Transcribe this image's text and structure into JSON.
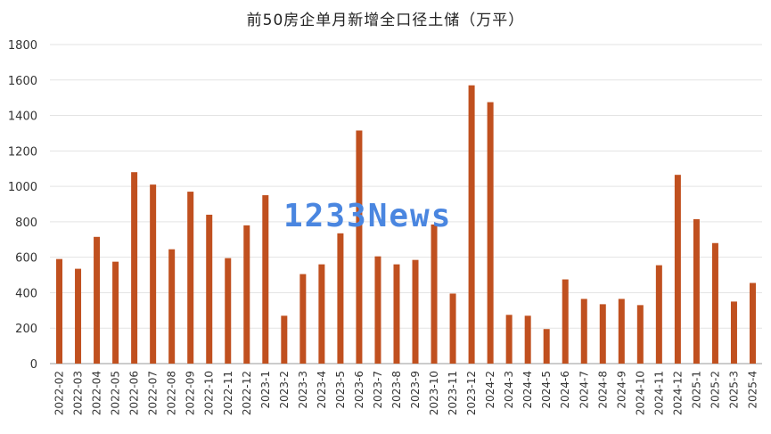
{
  "chart_data": {
    "type": "bar",
    "title": "前50房企单月新增全口径土储（万平）",
    "ylim": [
      0,
      1800
    ],
    "yticks": [
      0,
      200,
      400,
      600,
      800,
      1000,
      1200,
      1400,
      1600,
      1800
    ],
    "grid": true,
    "bar_color": "#c0501f",
    "categories": [
      "2022-02",
      "2022-03",
      "2022-04",
      "2022-05",
      "2022-06",
      "2022-07",
      "2022-08",
      "2022-09",
      "2022-10",
      "2022-11",
      "2022-12",
      "2023-1",
      "2023-2",
      "2023-3",
      "2023-4",
      "2023-5",
      "2023-6",
      "2023-7",
      "2023-8",
      "2023-9",
      "2023-10",
      "2023-11",
      "2023-12",
      "2024-2",
      "2024-3",
      "2024-4",
      "2024-5",
      "2024-6",
      "2024-7",
      "2024-8",
      "2024-9",
      "2024-10",
      "2024-11",
      "2024-12",
      "2025-1",
      "2025-2",
      "2025-3",
      "2025-4"
    ],
    "values": [
      590,
      535,
      715,
      575,
      1080,
      1010,
      645,
      970,
      840,
      595,
      780,
      950,
      270,
      505,
      560,
      735,
      1315,
      605,
      560,
      585,
      785,
      395,
      1570,
      1475,
      275,
      270,
      195,
      475,
      365,
      335,
      365,
      330,
      555,
      1065,
      815,
      680,
      350,
      455
    ]
  },
  "watermark": "1233News"
}
